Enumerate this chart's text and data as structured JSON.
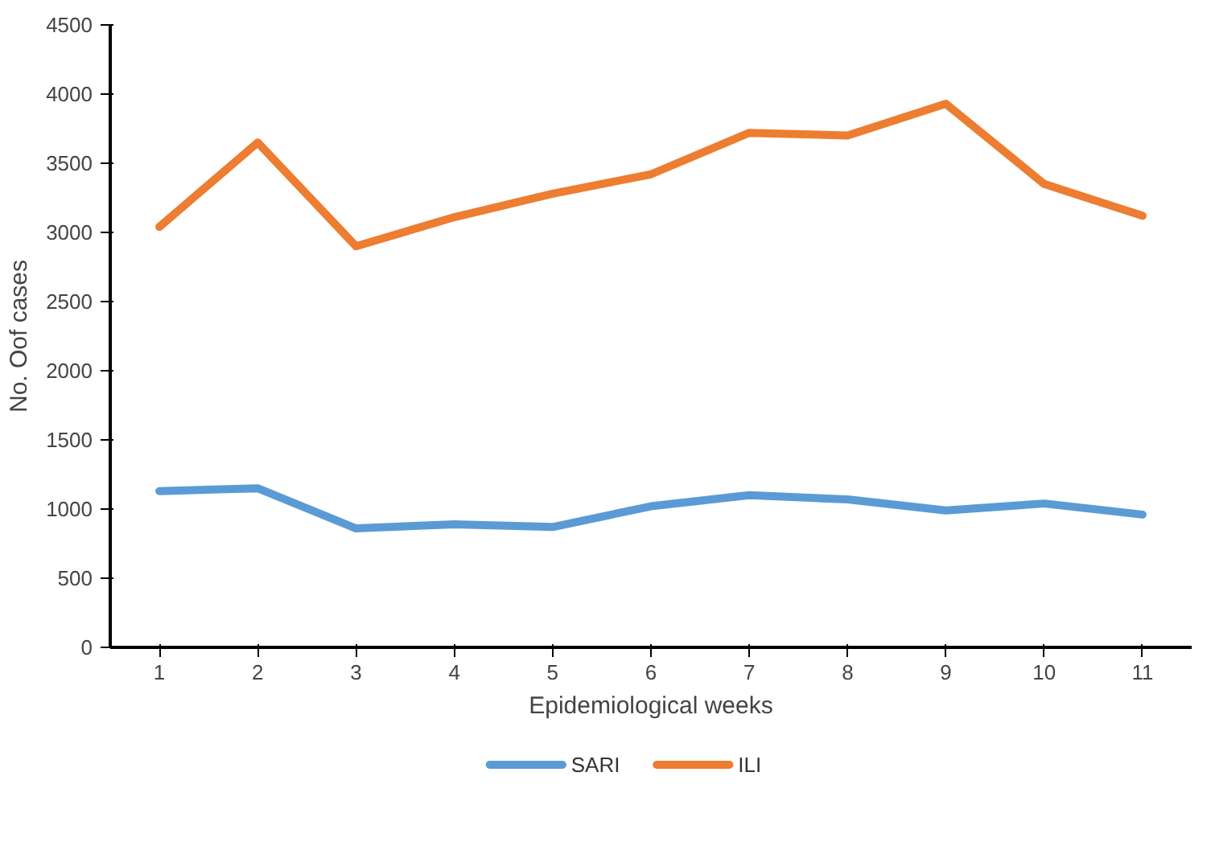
{
  "chart_data": {
    "type": "line",
    "xlabel": "Epidemiological weeks",
    "ylabel": "No. Oof cases",
    "categories": [
      "1",
      "2",
      "3",
      "4",
      "5",
      "6",
      "7",
      "8",
      "9",
      "10",
      "11"
    ],
    "series": [
      {
        "name": "SARI",
        "color": "#5b9bd5",
        "values": [
          1130,
          1150,
          860,
          890,
          870,
          1020,
          1100,
          1070,
          990,
          1040,
          960
        ]
      },
      {
        "name": "ILI",
        "color": "#ed7d31",
        "values": [
          3040,
          3650,
          2900,
          3110,
          3280,
          3420,
          3720,
          3700,
          3930,
          3350,
          3120
        ]
      }
    ],
    "ylim": [
      0,
      4500
    ],
    "yticks": [
      0,
      500,
      1000,
      1500,
      2000,
      2500,
      3000,
      3500,
      4000,
      4500
    ],
    "grid": false,
    "legend": "bottom",
    "marker": "none",
    "line_style": "solid"
  }
}
